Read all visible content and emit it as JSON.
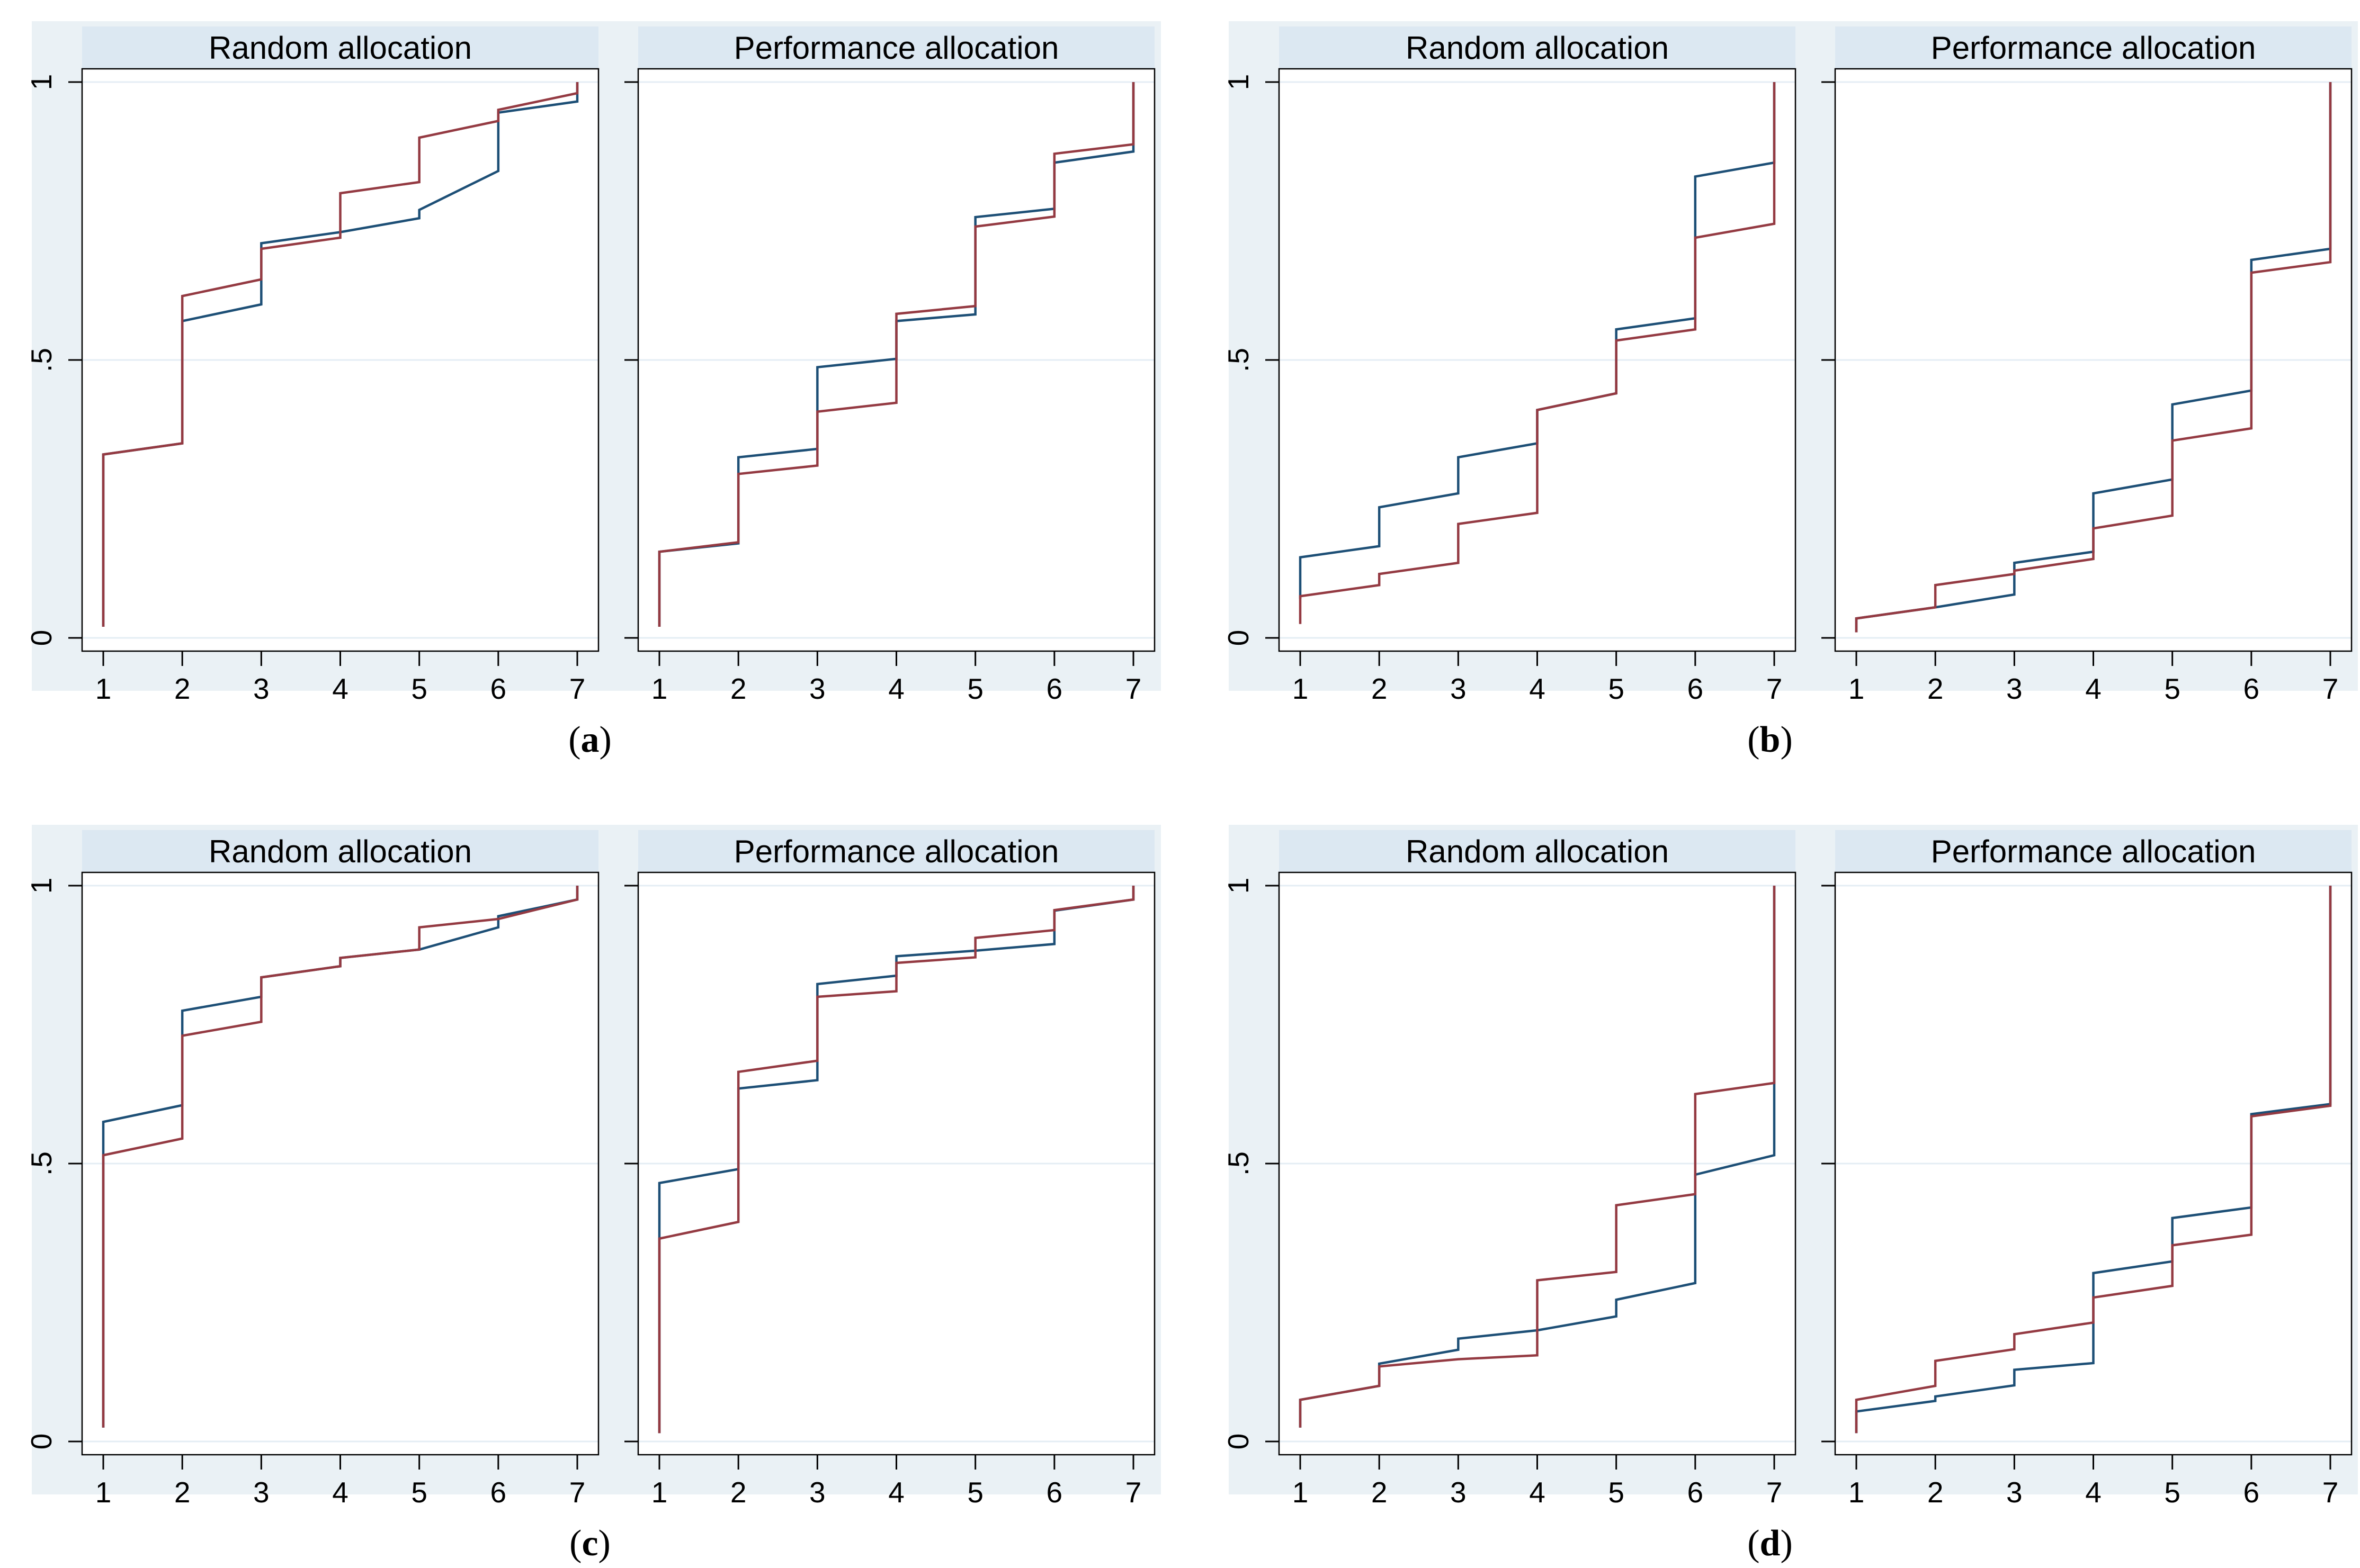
{
  "figure": {
    "background": "#ffffff",
    "colors": {
      "navy": "#1d4f76",
      "maroon": "#943a42",
      "title_strip": "#dce8f2",
      "panel_bg": "#eaf1f5",
      "gridline": "#e4edf4",
      "axis": "#000000",
      "text": "#000000"
    },
    "x_ticks": [
      "1",
      "2",
      "3",
      "4",
      "5",
      "6",
      "7"
    ],
    "y_ticks": [
      {
        "v": 0,
        "label": "0"
      },
      {
        "v": 0.5,
        "label": ".5"
      },
      {
        "v": 1,
        "label": "1"
      }
    ]
  },
  "chart_data": [
    {
      "type": "line",
      "caption_letter": "a",
      "x_range": [
        1,
        7
      ],
      "y_range": [
        0,
        1
      ],
      "subplots": [
        {
          "title": "Random allocation",
          "series": [
            {
              "name": "navy-cdf",
              "color_key": "navy",
              "steps": [
                [
                  0.02,
                  0.33
                ],
                [
                  0.35,
                  0.57
                ],
                [
                  0.6,
                  0.71
                ],
                [
                  0.73,
                  0.73
                ],
                [
                  0.755,
                  0.77
                ],
                [
                  0.84,
                  0.945
                ],
                [
                  0.965,
                  1.0
                ]
              ]
            },
            {
              "name": "maroon-cdf",
              "color_key": "maroon",
              "steps": [
                [
                  0.02,
                  0.33
                ],
                [
                  0.35,
                  0.615
                ],
                [
                  0.645,
                  0.7
                ],
                [
                  0.72,
                  0.8
                ],
                [
                  0.82,
                  0.9
                ],
                [
                  0.93,
                  0.95
                ],
                [
                  0.98,
                  1.0
                ]
              ]
            }
          ]
        },
        {
          "title": "Performance allocation",
          "series": [
            {
              "name": "navy-cdf",
              "color_key": "navy",
              "steps": [
                [
                  0.02,
                  0.155
                ],
                [
                  0.17,
                  0.325
                ],
                [
                  0.34,
                  0.487
                ],
                [
                  0.502,
                  0.57
                ],
                [
                  0.582,
                  0.757
                ],
                [
                  0.772,
                  0.855
                ],
                [
                  0.875,
                  1.0
                ]
              ]
            },
            {
              "name": "maroon-cdf",
              "color_key": "maroon",
              "steps": [
                [
                  0.02,
                  0.155
                ],
                [
                  0.172,
                  0.295
                ],
                [
                  0.31,
                  0.407
                ],
                [
                  0.423,
                  0.583
                ],
                [
                  0.597,
                  0.74
                ],
                [
                  0.758,
                  0.871
                ],
                [
                  0.888,
                  1.0
                ]
              ]
            }
          ]
        }
      ]
    },
    {
      "type": "line",
      "caption_letter": "b",
      "x_range": [
        1,
        7
      ],
      "y_range": [
        0,
        1
      ],
      "subplots": [
        {
          "title": "Random allocation",
          "series": [
            {
              "name": "navy-cdf",
              "color_key": "navy",
              "steps": [
                [
                  0.07,
                  0.145
                ],
                [
                  0.165,
                  0.235
                ],
                [
                  0.26,
                  0.325
                ],
                [
                  0.35,
                  0.41
                ],
                [
                  0.44,
                  0.555
                ],
                [
                  0.575,
                  0.83
                ],
                [
                  0.855,
                  1.0
                ]
              ]
            },
            {
              "name": "maroon-cdf",
              "color_key": "maroon",
              "steps": [
                [
                  0.025,
                  0.075
                ],
                [
                  0.095,
                  0.115
                ],
                [
                  0.135,
                  0.205
                ],
                [
                  0.225,
                  0.41
                ],
                [
                  0.44,
                  0.535
                ],
                [
                  0.555,
                  0.72
                ],
                [
                  0.745,
                  1.0
                ]
              ]
            }
          ]
        },
        {
          "title": "Performance allocation",
          "series": [
            {
              "name": "navy-cdf",
              "color_key": "navy",
              "steps": [
                [
                  0.01,
                  0.035
                ],
                [
                  0.055,
                  0.055
                ],
                [
                  0.078,
                  0.135
                ],
                [
                  0.155,
                  0.26
                ],
                [
                  0.285,
                  0.42
                ],
                [
                  0.445,
                  0.68
                ],
                [
                  0.7,
                  1.0
                ]
              ]
            },
            {
              "name": "maroon-cdf",
              "color_key": "maroon",
              "steps": [
                [
                  0.01,
                  0.035
                ],
                [
                  0.055,
                  0.095
                ],
                [
                  0.115,
                  0.121
                ],
                [
                  0.142,
                  0.197
                ],
                [
                  0.22,
                  0.355
                ],
                [
                  0.377,
                  0.657
                ],
                [
                  0.676,
                  1.0
                ]
              ]
            }
          ]
        }
      ]
    },
    {
      "type": "line",
      "caption_letter": "c",
      "x_range": [
        1,
        7
      ],
      "y_range": [
        0,
        1
      ],
      "subplots": [
        {
          "title": "Random allocation",
          "series": [
            {
              "name": "navy-cdf",
              "color_key": "navy",
              "steps": [
                [
                  0.025,
                  0.575
                ],
                [
                  0.605,
                  0.775
                ],
                [
                  0.8,
                  0.835
                ],
                [
                  0.855,
                  0.87
                ],
                [
                  0.885,
                  0.885
                ],
                [
                  0.925,
                  0.945
                ],
                [
                  0.975,
                  1.0
                ]
              ]
            },
            {
              "name": "maroon-cdf",
              "color_key": "maroon",
              "steps": [
                [
                  0.025,
                  0.515
                ],
                [
                  0.545,
                  0.73
                ],
                [
                  0.755,
                  0.835
                ],
                [
                  0.855,
                  0.87
                ],
                [
                  0.885,
                  0.925
                ],
                [
                  0.94,
                  0.94
                ],
                [
                  0.975,
                  1.0
                ]
              ]
            }
          ]
        },
        {
          "title": "Performance allocation",
          "series": [
            {
              "name": "navy-cdf",
              "color_key": "navy",
              "steps": [
                [
                  0.015,
                  0.465
                ],
                [
                  0.49,
                  0.635
                ],
                [
                  0.65,
                  0.823
                ],
                [
                  0.838,
                  0.873
                ],
                [
                  0.883,
                  0.883
                ],
                [
                  0.895,
                  0.955
                ],
                [
                  0.975,
                  1.0
                ]
              ]
            },
            {
              "name": "maroon-cdf",
              "color_key": "maroon",
              "steps": [
                [
                  0.015,
                  0.365
                ],
                [
                  0.395,
                  0.665
                ],
                [
                  0.685,
                  0.8
                ],
                [
                  0.81,
                  0.861
                ],
                [
                  0.871,
                  0.906
                ],
                [
                  0.92,
                  0.956
                ],
                [
                  0.975,
                  1.0
                ]
              ]
            }
          ]
        }
      ]
    },
    {
      "type": "line",
      "caption_letter": "d",
      "x_range": [
        1,
        7
      ],
      "y_range": [
        0,
        1
      ],
      "subplots": [
        {
          "title": "Random allocation",
          "series": [
            {
              "name": "navy-cdf",
              "color_key": "navy",
              "steps": [
                [
                  0.025,
                  0.075
                ],
                [
                  0.1,
                  0.14
                ],
                [
                  0.165,
                  0.185
                ],
                [
                  0.2,
                  0.2
                ],
                [
                  0.225,
                  0.255
                ],
                [
                  0.285,
                  0.48
                ],
                [
                  0.515,
                  1.0
                ]
              ]
            },
            {
              "name": "maroon-cdf",
              "color_key": "maroon",
              "steps": [
                [
                  0.025,
                  0.075
                ],
                [
                  0.1,
                  0.135
                ],
                [
                  0.148,
                  0.148
                ],
                [
                  0.155,
                  0.29
                ],
                [
                  0.305,
                  0.425
                ],
                [
                  0.445,
                  0.625
                ],
                [
                  0.645,
                  1.0
                ]
              ]
            }
          ]
        },
        {
          "title": "Performance allocation",
          "series": [
            {
              "name": "navy-cdf",
              "color_key": "navy",
              "steps": [
                [
                  0.015,
                  0.054
                ],
                [
                  0.073,
                  0.081
                ],
                [
                  0.101,
                  0.129
                ],
                [
                  0.141,
                  0.303
                ],
                [
                  0.324,
                  0.402
                ],
                [
                  0.421,
                  0.589
                ],
                [
                  0.607,
                  1.0
                ]
              ]
            },
            {
              "name": "maroon-cdf",
              "color_key": "maroon",
              "steps": [
                [
                  0.015,
                  0.075
                ],
                [
                  0.1,
                  0.145
                ],
                [
                  0.166,
                  0.193
                ],
                [
                  0.214,
                  0.259
                ],
                [
                  0.28,
                  0.353
                ],
                [
                  0.372,
                  0.585
                ],
                [
                  0.604,
                  1.0
                ]
              ]
            }
          ]
        }
      ]
    }
  ]
}
